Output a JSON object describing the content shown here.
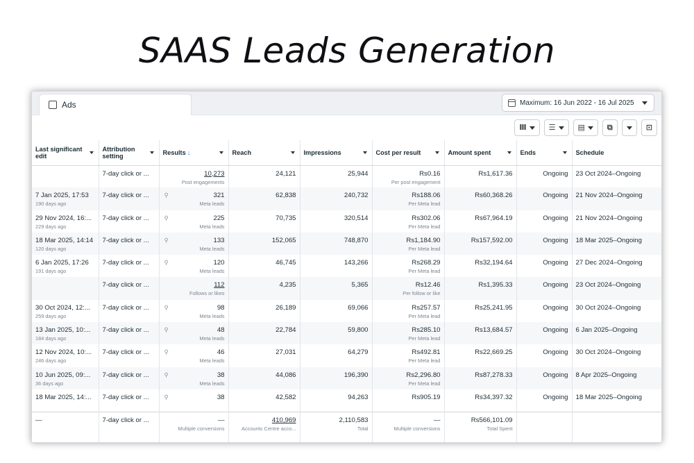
{
  "title": "SAAS Leads Generation",
  "tab": {
    "label": "Ads",
    "icon": "checkbox-icon"
  },
  "date_range": {
    "label": "Maximum: 16 Jun 2022 - 16 Jul 2025",
    "icon": "calendar-icon"
  },
  "toolbar": {
    "buttons": [
      {
        "icon": "columns-icon",
        "glyph": "Ⅲ"
      },
      {
        "icon": "breakdown-icon",
        "glyph": "☰"
      },
      {
        "icon": "reports-icon",
        "glyph": "▤"
      },
      {
        "icon": "export-icon",
        "glyph": "⧉"
      },
      {
        "icon": "more-dropdown-icon",
        "glyph": ""
      },
      {
        "icon": "expand-icon",
        "glyph": "⊡"
      }
    ]
  },
  "columns": [
    "Last significant edit",
    "Attribution setting",
    "Results",
    "Reach",
    "Impressions",
    "Cost per result",
    "Amount spent",
    "Ends",
    "Schedule"
  ],
  "rows": [
    {
      "edit": "",
      "edit_sub": "",
      "attr": "7-day click or ...",
      "result": "10,273",
      "result_sub": "Post engagements",
      "result_link": true,
      "result_icon": false,
      "reach": "24,121",
      "impressions": "25,944",
      "cpr": "Rs0.16",
      "cpr_sub": "Per post engagement",
      "spent": "Rs1,617.36",
      "ends": "Ongoing",
      "schedule": "23 Oct 2024–Ongoing"
    },
    {
      "edit": "7 Jan 2025, 17:53",
      "edit_sub": "190 days ago",
      "attr": "7-day click or ...",
      "result": "321",
      "result_sub": "Meta leads",
      "result_link": false,
      "result_icon": true,
      "reach": "62,838",
      "impressions": "240,732",
      "cpr": "Rs188.06",
      "cpr_sub": "Per Meta lead",
      "spent": "Rs60,368.26",
      "ends": "Ongoing",
      "schedule": "21 Nov 2024–Ongoing"
    },
    {
      "edit": "29 Nov 2024, 16:...",
      "edit_sub": "229 days ago",
      "attr": "7-day click or ...",
      "result": "225",
      "result_sub": "Meta leads",
      "result_link": false,
      "result_icon": true,
      "reach": "70,735",
      "impressions": "320,514",
      "cpr": "Rs302.06",
      "cpr_sub": "Per Meta lead",
      "spent": "Rs67,964.19",
      "ends": "Ongoing",
      "schedule": "21 Nov 2024–Ongoing"
    },
    {
      "edit": "18 Mar 2025, 14:14",
      "edit_sub": "120 days ago",
      "attr": "7-day click or ...",
      "result": "133",
      "result_sub": "Meta leads",
      "result_link": false,
      "result_icon": true,
      "reach": "152,065",
      "impressions": "748,870",
      "cpr": "Rs1,184.90",
      "cpr_sub": "Per Meta lead",
      "spent": "Rs157,592.00",
      "ends": "Ongoing",
      "schedule": "18 Mar 2025–Ongoing"
    },
    {
      "edit": "6 Jan 2025, 17:26",
      "edit_sub": "191 days ago",
      "attr": "7-day click or ...",
      "result": "120",
      "result_sub": "Meta leads",
      "result_link": false,
      "result_icon": true,
      "reach": "46,745",
      "impressions": "143,266",
      "cpr": "Rs268.29",
      "cpr_sub": "Per Meta lead",
      "spent": "Rs32,194.64",
      "ends": "Ongoing",
      "schedule": "27 Dec 2024–Ongoing"
    },
    {
      "edit": "",
      "edit_sub": "",
      "attr": "7-day click or ...",
      "result": "112",
      "result_sub": "Follows or likes",
      "result_link": true,
      "result_icon": false,
      "reach": "4,235",
      "impressions": "5,365",
      "cpr": "Rs12.46",
      "cpr_sub": "Per follow or like",
      "spent": "Rs1,395.33",
      "ends": "Ongoing",
      "schedule": "23 Oct 2024–Ongoing"
    },
    {
      "edit": "30 Oct 2024, 12:...",
      "edit_sub": "259 days ago",
      "attr": "7-day click or ...",
      "result": "98",
      "result_sub": "Meta leads",
      "result_link": false,
      "result_icon": true,
      "reach": "26,189",
      "impressions": "69,066",
      "cpr": "Rs257.57",
      "cpr_sub": "Per Meta lead",
      "spent": "Rs25,241.95",
      "ends": "Ongoing",
      "schedule": "30 Oct 2024–Ongoing"
    },
    {
      "edit": "13 Jan 2025, 10:...",
      "edit_sub": "184 days ago",
      "attr": "7-day click or ...",
      "result": "48",
      "result_sub": "Meta leads",
      "result_link": false,
      "result_icon": true,
      "reach": "22,784",
      "impressions": "59,800",
      "cpr": "Rs285.10",
      "cpr_sub": "Per Meta lead",
      "spent": "Rs13,684.57",
      "ends": "Ongoing",
      "schedule": "6 Jan 2025–Ongoing"
    },
    {
      "edit": "12 Nov 2024, 10:...",
      "edit_sub": "246 days ago",
      "attr": "7-day click or ...",
      "result": "46",
      "result_sub": "Meta leads",
      "result_link": false,
      "result_icon": true,
      "reach": "27,031",
      "impressions": "64,279",
      "cpr": "Rs492.81",
      "cpr_sub": "Per Meta lead",
      "spent": "Rs22,669.25",
      "ends": "Ongoing",
      "schedule": "30 Oct 2024–Ongoing"
    },
    {
      "edit": "10 Jun 2025, 09:...",
      "edit_sub": "36 days ago",
      "attr": "7-day click or ...",
      "result": "38",
      "result_sub": "Meta leads",
      "result_link": false,
      "result_icon": true,
      "reach": "44,086",
      "impressions": "196,390",
      "cpr": "Rs2,296.80",
      "cpr_sub": "Per Meta lead",
      "spent": "Rs87,278.33",
      "ends": "Ongoing",
      "schedule": "8 Apr 2025–Ongoing"
    },
    {
      "edit": "18 Mar 2025, 14:...",
      "edit_sub": "",
      "attr": "7-day click or ...",
      "result": "38",
      "result_sub": "",
      "result_link": false,
      "result_icon": true,
      "reach": "42,582",
      "impressions": "94,263",
      "cpr": "Rs905.19",
      "cpr_sub": "",
      "spent": "Rs34,397.32",
      "ends": "Ongoing",
      "schedule": "18 Mar 2025–Ongoing"
    }
  ],
  "totals": {
    "edit": "—",
    "attr": "7-day click or ...",
    "result": "—",
    "result_sub": "Multiple conversions",
    "reach": "410,969",
    "reach_sub": "Accounts Centre acco...",
    "impressions": "2,110,583",
    "impressions_sub": "Total",
    "cpr": "—",
    "cpr_sub": "Multiple conversions",
    "spent": "Rs566,101.09",
    "spent_sub": "Total Spent"
  }
}
